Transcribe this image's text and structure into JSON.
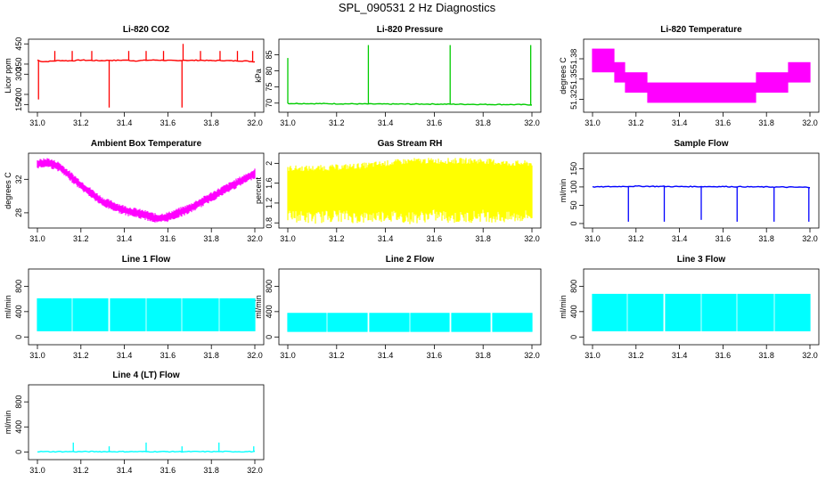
{
  "title": "SPL_090531  2 Hz Diagnostics",
  "colors": {
    "red": "#ff0000",
    "green": "#00cc00",
    "magenta": "#ff00ff",
    "yellow": "#ffff00",
    "blue": "#0000ff",
    "cyan": "#00ffff",
    "axis": "#000000"
  },
  "chart_data": [
    {
      "id": "co2",
      "type": "line",
      "title": "Li-820 CO2",
      "ylabel": "Licor ppm",
      "color": "red",
      "xlim": [
        31.0,
        32.0
      ],
      "ylim": [
        125,
        460
      ],
      "xticks": [
        "31.0",
        "31.2",
        "31.4",
        "31.6",
        "31.8",
        "32.0"
      ],
      "yticks": [
        150,
        200,
        300,
        350,
        450
      ],
      "x": [
        31.0,
        31.01,
        31.03,
        31.06,
        31.1,
        31.15,
        31.2,
        31.25,
        31.3,
        31.33,
        31.36,
        31.4,
        31.45,
        31.5,
        31.55,
        31.6,
        31.65,
        31.67,
        31.7,
        31.75,
        31.8,
        31.85,
        31.9,
        31.95,
        31.99
      ],
      "y": [
        370,
        365,
        362,
        364,
        368,
        366,
        370,
        368,
        367,
        369,
        368,
        370,
        366,
        369,
        370,
        368,
        366,
        370,
        368,
        369,
        367,
        368,
        366,
        366,
        362
      ],
      "spikes": [
        {
          "x": 31.005,
          "y": 175
        },
        {
          "x": 31.08,
          "y": 415
        },
        {
          "x": 31.16,
          "y": 415
        },
        {
          "x": 31.25,
          "y": 415
        },
        {
          "x": 31.33,
          "y": 135
        },
        {
          "x": 31.42,
          "y": 415
        },
        {
          "x": 31.5,
          "y": 415
        },
        {
          "x": 31.58,
          "y": 415
        },
        {
          "x": 31.665,
          "y": 135
        },
        {
          "x": 31.67,
          "y": 450
        },
        {
          "x": 31.75,
          "y": 415
        },
        {
          "x": 31.84,
          "y": 415
        },
        {
          "x": 31.92,
          "y": 415
        },
        {
          "x": 31.99,
          "y": 415
        }
      ]
    },
    {
      "id": "pressure",
      "type": "line",
      "title": "Li-820 Pressure",
      "ylabel": "kPa",
      "color": "green",
      "xlim": [
        31.0,
        32.0
      ],
      "ylim": [
        68,
        89
      ],
      "xticks": [
        "31.0",
        "31.2",
        "31.4",
        "31.6",
        "31.8",
        "32.0"
      ],
      "yticks": [
        70,
        75,
        80,
        85
      ],
      "x": [
        31.0,
        31.2,
        31.4,
        31.6,
        31.8,
        32.0
      ],
      "y": [
        69.9,
        69.8,
        69.7,
        69.7,
        69.6,
        69.5
      ],
      "spikes": [
        {
          "x": 31.0,
          "y": 84
        },
        {
          "x": 31.33,
          "y": 88
        },
        {
          "x": 31.665,
          "y": 88
        },
        {
          "x": 31.995,
          "y": 88
        }
      ]
    },
    {
      "id": "temperature",
      "type": "area",
      "title": "Li-820 Temperature",
      "ylabel": "degrees C",
      "color": "magenta",
      "xlim": [
        31.0,
        32.0
      ],
      "ylim": [
        51.305,
        51.405
      ],
      "xticks": [
        "31.0",
        "31.2",
        "31.4",
        "31.6",
        "31.8",
        "32.0"
      ],
      "yticks": [
        51.32,
        51.35,
        51.38
      ],
      "x": [
        31.0,
        31.1,
        31.1,
        31.15,
        31.15,
        31.25,
        31.25,
        31.75,
        31.75,
        31.9,
        31.9,
        32.0
      ],
      "low": [
        51.36,
        51.36,
        51.345,
        51.345,
        51.33,
        51.33,
        51.315,
        51.315,
        51.33,
        51.33,
        51.345,
        51.345
      ],
      "high": [
        51.395,
        51.395,
        51.375,
        51.375,
        51.36,
        51.36,
        51.345,
        51.345,
        51.36,
        51.36,
        51.375,
        51.375
      ]
    },
    {
      "id": "box-temp",
      "type": "area",
      "title": "Ambient Box Temperature",
      "ylabel": "degrees C",
      "color": "magenta",
      "xlim": [
        31.0,
        32.0
      ],
      "ylim": [
        26.5,
        34.8
      ],
      "xticks": [
        "31.0",
        "31.2",
        "31.4",
        "31.6",
        "31.8",
        "32.0"
      ],
      "yticks": [
        28,
        32
      ],
      "x": [
        31.0,
        31.05,
        31.1,
        31.2,
        31.3,
        31.4,
        31.5,
        31.55,
        31.6,
        31.7,
        31.8,
        31.9,
        32.0
      ],
      "low": [
        33.6,
        33.7,
        33.2,
        31.0,
        29.0,
        28.0,
        27.4,
        27.0,
        27.2,
        28.2,
        29.6,
        31.0,
        32.4
      ],
      "high": [
        34.1,
        34.3,
        33.8,
        31.6,
        29.6,
        28.6,
        28.0,
        27.6,
        27.8,
        28.8,
        30.2,
        31.6,
        33.0
      ]
    },
    {
      "id": "rh",
      "type": "area",
      "title": "Gas Stream RH",
      "ylabel": "percent",
      "color": "yellow",
      "xlim": [
        31.0,
        32.0
      ],
      "ylim": [
        0.75,
        2.15
      ],
      "xticks": [
        "31.0",
        "31.2",
        "31.4",
        "31.6",
        "31.8",
        "32.0"
      ],
      "yticks": [
        0.8,
        1.2,
        1.6,
        2.0
      ],
      "x": [
        31.0,
        31.1,
        31.2,
        31.3,
        31.4,
        31.5,
        31.6,
        31.7,
        31.8,
        31.9,
        31.99
      ],
      "low": [
        0.95,
        0.9,
        0.95,
        0.9,
        0.95,
        0.9,
        0.95,
        0.9,
        0.95,
        0.9,
        0.95
      ],
      "high": [
        1.9,
        1.9,
        1.92,
        1.95,
        2.0,
        2.05,
        2.05,
        2.05,
        2.05,
        2.0,
        2.0
      ]
    },
    {
      "id": "sample-flow",
      "type": "line",
      "title": "Sample Flow",
      "ylabel": "ml/min",
      "color": "blue",
      "xlim": [
        31.0,
        32.0
      ],
      "ylim": [
        -5,
        185
      ],
      "xticks": [
        "31.0",
        "31.2",
        "31.4",
        "31.6",
        "31.8",
        "32.0"
      ],
      "yticks": [
        0,
        50,
        100,
        150
      ],
      "x": [
        31.0,
        31.2,
        31.4,
        31.6,
        31.8,
        31.99
      ],
      "y": [
        100,
        102,
        101,
        101,
        100,
        99
      ],
      "spikes": [
        {
          "x": 31.165,
          "y": 5
        },
        {
          "x": 31.33,
          "y": 5
        },
        {
          "x": 31.5,
          "y": 10
        },
        {
          "x": 31.665,
          "y": 5
        },
        {
          "x": 31.835,
          "y": 5
        },
        {
          "x": 31.995,
          "y": 5
        }
      ]
    },
    {
      "id": "line1",
      "type": "area",
      "title": "Line 1 Flow",
      "ylabel": "ml/min",
      "color": "cyan",
      "xlim": [
        31.0,
        32.0
      ],
      "ylim": [
        -80,
        1030
      ],
      "xticks": [
        "31.0",
        "31.2",
        "31.4",
        "31.6",
        "31.8",
        "32.0"
      ],
      "yticks": [
        0,
        400,
        800
      ],
      "x": [
        31.0,
        32.0
      ],
      "low": [
        90,
        90
      ],
      "high": [
        610,
        610
      ],
      "gaps": [
        31.16,
        31.33,
        31.5,
        31.665,
        31.835
      ]
    },
    {
      "id": "line2",
      "type": "area",
      "title": "Line 2 Flow",
      "ylabel": "ml/min",
      "color": "cyan",
      "xlim": [
        31.0,
        32.0
      ],
      "ylim": [
        -80,
        1030
      ],
      "xticks": [
        "31.0",
        "31.2",
        "31.4",
        "31.6",
        "31.8",
        "32.0"
      ],
      "yticks": [
        0,
        400,
        800
      ],
      "x": [
        31.0,
        32.0
      ],
      "low": [
        80,
        80
      ],
      "high": [
        380,
        380
      ],
      "gaps": [
        31.16,
        31.33,
        31.5,
        31.665,
        31.835
      ]
    },
    {
      "id": "line3",
      "type": "area",
      "title": "Line 3 Flow",
      "ylabel": "ml/min",
      "color": "cyan",
      "xlim": [
        31.0,
        32.0
      ],
      "ylim": [
        -80,
        1030
      ],
      "xticks": [
        "31.0",
        "31.2",
        "31.4",
        "31.6",
        "31.8",
        "32.0"
      ],
      "yticks": [
        0,
        400,
        800
      ],
      "x": [
        31.0,
        32.0
      ],
      "low": [
        90,
        90
      ],
      "high": [
        680,
        680
      ],
      "gaps": [
        31.16,
        31.33,
        31.5,
        31.665,
        31.835
      ]
    },
    {
      "id": "line4",
      "type": "line",
      "title": "Line 4 (LT) Flow",
      "ylabel": "ml/min",
      "color": "cyan",
      "xlim": [
        31.0,
        32.0
      ],
      "ylim": [
        -80,
        1030
      ],
      "xticks": [
        "31.0",
        "31.2",
        "31.4",
        "31.6",
        "31.8",
        "32.0"
      ],
      "yticks": [
        0,
        400,
        800
      ],
      "x": [
        31.0,
        32.0
      ],
      "y": [
        5,
        5
      ],
      "spikes": [
        {
          "x": 31.165,
          "y": 150
        },
        {
          "x": 31.33,
          "y": 90
        },
        {
          "x": 31.5,
          "y": 150
        },
        {
          "x": 31.665,
          "y": 90
        },
        {
          "x": 31.835,
          "y": 150
        },
        {
          "x": 31.995,
          "y": 90
        }
      ]
    }
  ]
}
